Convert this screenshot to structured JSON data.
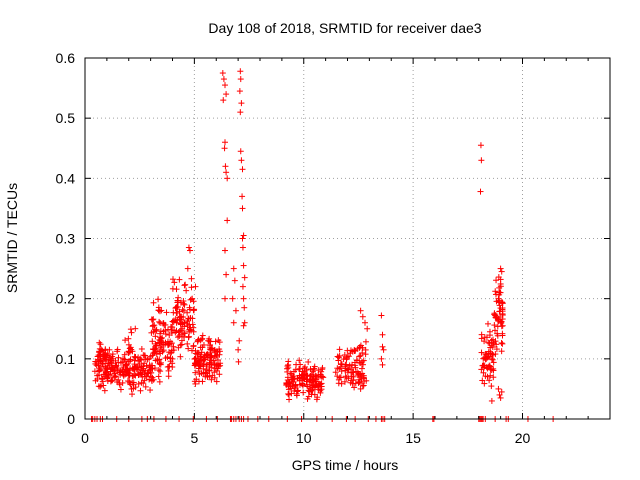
{
  "chart_data": {
    "type": "scatter",
    "title": "Day 108 of 2018, SRMTID for receiver dae3",
    "xlabel": "GPS time / hours",
    "ylabel": "SRMTID / TECUs",
    "xlim": [
      0,
      24
    ],
    "ylim": [
      0,
      0.6
    ],
    "x_ticks": [
      0,
      5,
      10,
      15,
      20
    ],
    "y_ticks": [
      0,
      0.1,
      0.2,
      0.3,
      0.4,
      0.5,
      0.6
    ],
    "x_tick_labels": [
      "0",
      "5",
      "10",
      "15",
      "20"
    ],
    "y_tick_labels": [
      "0",
      "0.1",
      "0.2",
      "0.3",
      "0.4",
      "0.5",
      "0.6"
    ],
    "grid": true,
    "marker": "+",
    "color": "#ff0000",
    "series": [
      {
        "name": "SRMTID",
        "clusters": [
          {
            "x_range": [
              0.45,
              3.1
            ],
            "y_range": [
              0.04,
              0.12
            ],
            "count": 220
          },
          {
            "x_range": [
              0.6,
              1.0
            ],
            "y_range": [
              0.08,
              0.13
            ],
            "count": 30
          },
          {
            "x_range": [
              1.8,
              2.3
            ],
            "y_range": [
              0.07,
              0.16
            ],
            "count": 20
          },
          {
            "x_range": [
              3.0,
              4.0
            ],
            "y_range": [
              0.06,
              0.2
            ],
            "count": 110
          },
          {
            "x_range": [
              4.0,
              5.0
            ],
            "y_range": [
              0.1,
              0.24
            ],
            "count": 100
          },
          {
            "x_range": [
              5.0,
              6.2
            ],
            "y_range": [
              0.05,
              0.15
            ],
            "count": 130
          },
          {
            "x_range": [
              9.2,
              10.9
            ],
            "y_range": [
              0.03,
              0.1
            ],
            "count": 150
          },
          {
            "x_range": [
              11.4,
              12.9
            ],
            "y_range": [
              0.04,
              0.13
            ],
            "count": 100
          },
          {
            "x_range": [
              18.1,
              18.7
            ],
            "y_range": [
              0.05,
              0.16
            ],
            "count": 60
          },
          {
            "x_range": [
              18.7,
              19.1
            ],
            "y_range": [
              0.1,
              0.24
            ],
            "count": 60
          }
        ],
        "points": [
          [
            4.75,
            0.285
          ],
          [
            4.8,
            0.28
          ],
          [
            4.7,
            0.25
          ],
          [
            4.9,
            0.2
          ],
          [
            5.05,
            0.22
          ],
          [
            6.3,
            0.575
          ],
          [
            6.35,
            0.565
          ],
          [
            6.4,
            0.555
          ],
          [
            6.45,
            0.54
          ],
          [
            6.32,
            0.53
          ],
          [
            6.4,
            0.46
          ],
          [
            6.38,
            0.45
          ],
          [
            6.42,
            0.42
          ],
          [
            6.45,
            0.41
          ],
          [
            6.5,
            0.4
          ],
          [
            6.5,
            0.33
          ],
          [
            6.4,
            0.28
          ],
          [
            6.45,
            0.24
          ],
          [
            6.4,
            0.2
          ],
          [
            6.8,
            0.25
          ],
          [
            6.85,
            0.23
          ],
          [
            6.75,
            0.2
          ],
          [
            6.9,
            0.18
          ],
          [
            6.8,
            0.16
          ],
          [
            7.1,
            0.578
          ],
          [
            7.12,
            0.565
          ],
          [
            7.08,
            0.545
          ],
          [
            7.15,
            0.525
          ],
          [
            7.1,
            0.51
          ],
          [
            7.12,
            0.445
          ],
          [
            7.15,
            0.43
          ],
          [
            7.2,
            0.415
          ],
          [
            7.18,
            0.37
          ],
          [
            7.2,
            0.35
          ],
          [
            7.25,
            0.305
          ],
          [
            7.2,
            0.3
          ],
          [
            7.22,
            0.285
          ],
          [
            7.25,
            0.255
          ],
          [
            7.3,
            0.235
          ],
          [
            7.22,
            0.22
          ],
          [
            7.25,
            0.2
          ],
          [
            7.28,
            0.185
          ],
          [
            7.3,
            0.16
          ],
          [
            7.25,
            0.155
          ],
          [
            7.05,
            0.13
          ],
          [
            7.0,
            0.115
          ],
          [
            7.02,
            0.095
          ],
          [
            13.55,
            0.172
          ],
          [
            13.6,
            0.14
          ],
          [
            13.6,
            0.12
          ],
          [
            13.65,
            0.115
          ],
          [
            13.55,
            0.1
          ],
          [
            13.6,
            0.09
          ],
          [
            12.6,
            0.18
          ],
          [
            12.7,
            0.17
          ],
          [
            12.8,
            0.16
          ],
          [
            12.9,
            0.15
          ],
          [
            18.1,
            0.455
          ],
          [
            18.12,
            0.43
          ],
          [
            18.08,
            0.378
          ],
          [
            18.9,
            0.2
          ],
          [
            18.95,
            0.21
          ],
          [
            19.0,
            0.25
          ],
          [
            19.05,
            0.245
          ],
          [
            19.0,
            0.232
          ],
          [
            18.9,
            0.05
          ],
          [
            18.95,
            0.04
          ],
          [
            19.0,
            0.035
          ],
          [
            19.05,
            0.045
          ],
          [
            18.6,
            0.03
          ],
          [
            12.5,
            0.06
          ],
          [
            12.6,
            0.05
          ],
          [
            12.7,
            0.055
          ],
          [
            0.3,
            0.0
          ],
          [
            0.35,
            0.0
          ],
          [
            0.45,
            0.0
          ],
          [
            0.55,
            0.0
          ],
          [
            0.7,
            0.0
          ],
          [
            0.8,
            0.0
          ],
          [
            1.45,
            0.0
          ],
          [
            2.0,
            0.0
          ],
          [
            2.6,
            0.0
          ],
          [
            2.85,
            0.0
          ],
          [
            3.15,
            0.0
          ],
          [
            3.7,
            0.0
          ],
          [
            4.3,
            0.0
          ],
          [
            4.95,
            0.0
          ],
          [
            5.55,
            0.0
          ],
          [
            6.05,
            0.0
          ],
          [
            6.65,
            0.0
          ],
          [
            6.7,
            0.0
          ],
          [
            6.8,
            0.0
          ],
          [
            6.9,
            0.0
          ],
          [
            7.05,
            0.0
          ],
          [
            7.15,
            0.0
          ],
          [
            7.25,
            0.0
          ],
          [
            7.45,
            0.0
          ],
          [
            7.9,
            0.0
          ],
          [
            8.4,
            0.0
          ],
          [
            9.25,
            0.0
          ],
          [
            9.9,
            0.0
          ],
          [
            10.6,
            0.0
          ],
          [
            11.3,
            0.0
          ],
          [
            11.95,
            0.0
          ],
          [
            12.35,
            0.0
          ],
          [
            12.95,
            0.0
          ],
          [
            13.3,
            0.0
          ],
          [
            13.55,
            0.0
          ],
          [
            13.62,
            0.0
          ],
          [
            13.7,
            0.0
          ],
          [
            15.9,
            0.0
          ],
          [
            15.95,
            0.0
          ],
          [
            18.0,
            0.0
          ],
          [
            18.05,
            0.0
          ],
          [
            18.1,
            0.0
          ],
          [
            18.15,
            0.0
          ],
          [
            18.2,
            0.0
          ],
          [
            18.3,
            0.0
          ],
          [
            18.75,
            0.0
          ],
          [
            19.25,
            0.0
          ],
          [
            19.35,
            0.0
          ],
          [
            20.25,
            0.0
          ],
          [
            21.4,
            0.0
          ]
        ]
      }
    ]
  }
}
